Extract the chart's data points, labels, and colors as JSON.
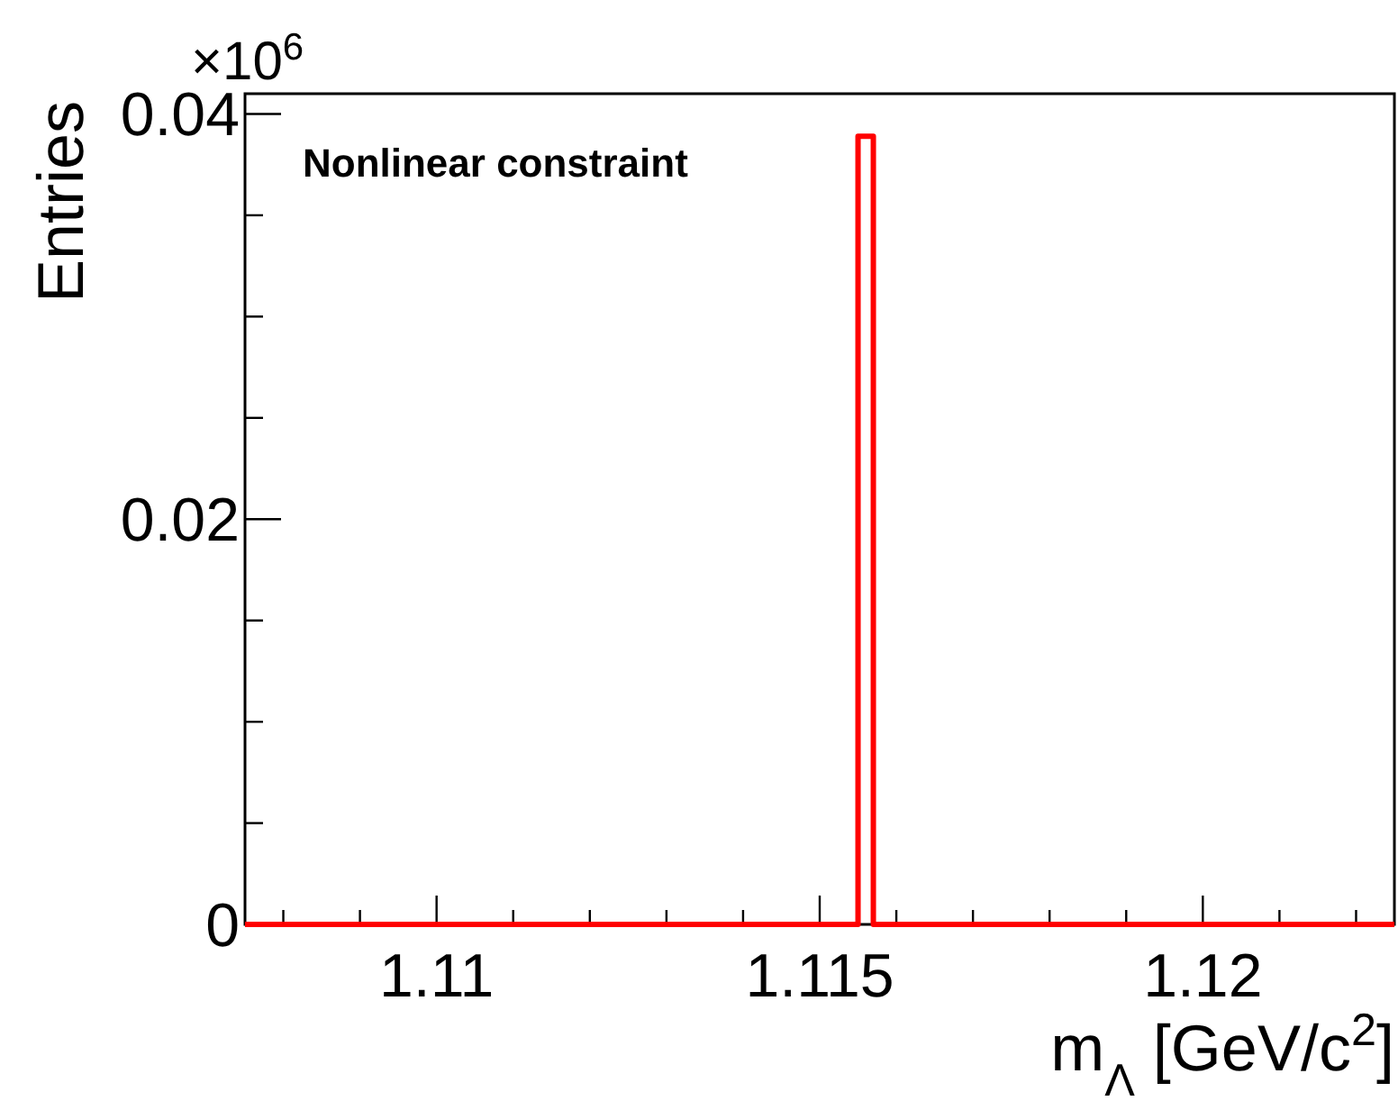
{
  "chart_data": {
    "type": "histogram",
    "xlabel": "m$_{Λ}$ [GeV/c$^{2}$]",
    "ylabel": "Entries",
    "annotations": [
      "×10$^{6}$",
      "Nonlinear constraint"
    ],
    "bins": [
      1.1075,
      1.1155,
      1.1157,
      1.1225
    ],
    "values": [
      0,
      0.0389,
      0
    ],
    "color": "#ff0000",
    "xlim": [
      1.1075,
      1.1225
    ],
    "xticks": [
      {
        "value": 1.108,
        "label": null
      },
      {
        "value": 1.109,
        "label": null
      },
      1.11,
      {
        "value": 1.111,
        "label": null
      },
      {
        "value": 1.112,
        "label": null
      },
      {
        "value": 1.113,
        "label": null
      },
      {
        "value": 1.114,
        "label": null
      },
      1.115,
      {
        "value": 1.116,
        "label": null
      },
      {
        "value": 1.117,
        "label": null
      },
      {
        "value": 1.118,
        "label": null
      },
      {
        "value": 1.119,
        "label": null
      },
      1.12,
      {
        "value": 1.121,
        "label": null
      },
      {
        "value": 1.122,
        "label": null
      }
    ],
    "ylim": [
      0,
      0.041
    ],
    "yticks": [
      0,
      {
        "value": 0.005,
        "label": null
      },
      {
        "value": 0.01,
        "label": null
      },
      {
        "value": 0.015,
        "label": null
      },
      0.02,
      {
        "value": 0.025,
        "label": null
      },
      {
        "value": 0.03,
        "label": null
      },
      {
        "value": 0.035,
        "label": null
      },
      0.04
    ],
    "grid": false
  }
}
